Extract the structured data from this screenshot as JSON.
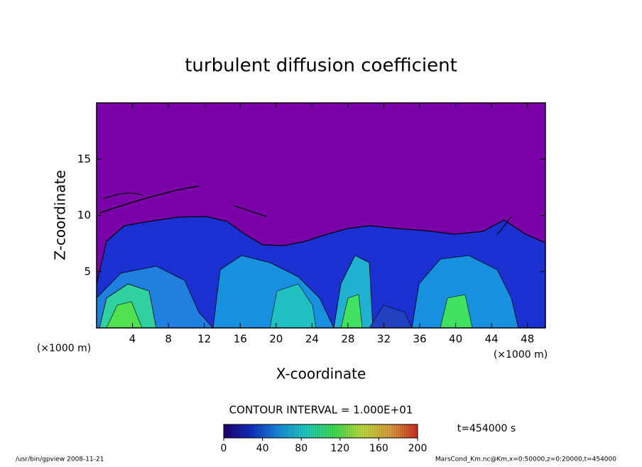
{
  "chart_data": {
    "type": "contour",
    "title": "turbulent diffusion coefficient",
    "x_label": "X-coordinate",
    "y_label": "Z-coordinate",
    "x_unit": "(×1000 m)",
    "y_unit": "(×1000 m)",
    "xlim": [
      0,
      50
    ],
    "xticks": [
      4,
      8,
      12,
      16,
      20,
      24,
      28,
      32,
      36,
      40,
      44,
      48
    ],
    "ylim": [
      0,
      20
    ],
    "yticks": [
      5,
      10,
      15
    ],
    "contour_interval_label": "CONTOUR INTERVAL = 1.000E+01",
    "colorbar": {
      "lim": [
        0,
        200
      ],
      "ticks": [
        0,
        40,
        80,
        120,
        160,
        200
      ],
      "colormap": [
        "#200070",
        "#1030c0",
        "#1890e0",
        "#20d0c0",
        "#40e050",
        "#c0e040",
        "#e0a040",
        "#d03020"
      ]
    },
    "time_label": "t=454000 s"
  },
  "footer": {
    "left": "/usr/bin/gpview   2008-11-21",
    "right": "MarsCond_Km.nc@Km,x=0:50000,z=0:20000,t=454000"
  }
}
